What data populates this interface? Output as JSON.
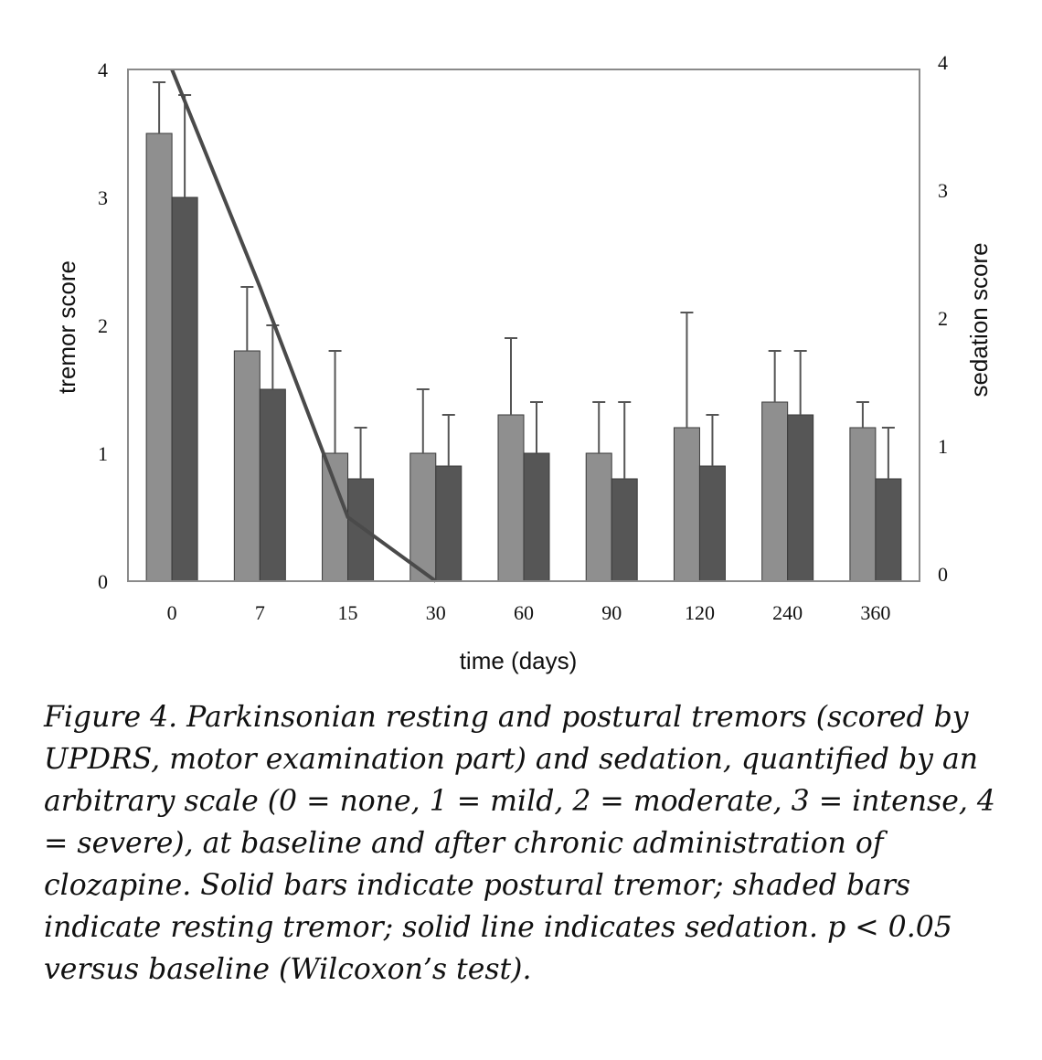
{
  "chart_data": {
    "type": "bar",
    "categories": [
      "0",
      "7",
      "15",
      "30",
      "60",
      "90",
      "120",
      "240",
      "360"
    ],
    "xlabel": "time (days)",
    "ylabel": "tremor score",
    "y2label": "sedation score",
    "ylim": [
      0,
      4
    ],
    "y2lim": [
      0,
      4
    ],
    "yticks": [
      "0",
      "1",
      "2",
      "3",
      "4"
    ],
    "y2ticks": [
      "0",
      "1",
      "2",
      "3",
      "4"
    ],
    "grid": false,
    "series": [
      {
        "kind": "bar",
        "color": "#8f8f8f",
        "values": [
          3.5,
          1.8,
          1.0,
          1.0,
          1.3,
          1.0,
          1.2,
          1.4,
          1.2
        ],
        "error_upper": [
          3.9,
          2.3,
          1.8,
          1.5,
          1.9,
          1.4,
          2.1,
          1.8,
          1.4
        ]
      },
      {
        "kind": "bar",
        "color": "#565656",
        "values": [
          3.0,
          1.5,
          0.8,
          0.9,
          1.0,
          0.8,
          0.9,
          1.3,
          0.8
        ],
        "error_upper": [
          3.8,
          2.0,
          1.2,
          1.3,
          1.4,
          1.4,
          1.3,
          1.8,
          1.2
        ]
      },
      {
        "kind": "line",
        "axis": "right",
        "color": "#4a4a4a",
        "values": [
          4.0,
          2.3,
          0.5,
          0.0,
          null,
          null,
          null,
          null,
          null
        ]
      }
    ]
  },
  "caption": {
    "text": "Figure 4. Parkinsonian resting and postural tremors (scored by UPDRS, motor examination part) and sedation, quantified by an arbitrary scale (0 = none, 1 = mild, 2 = moderate, 3 = intense, 4 = severe), at baseline and after chronic administration of clozapine. Solid bars indicate postural tremor; shaded bars indicate resting tremor; solid line indicates sedation. p < 0.05 versus baseline (Wilcoxon’s test)."
  }
}
